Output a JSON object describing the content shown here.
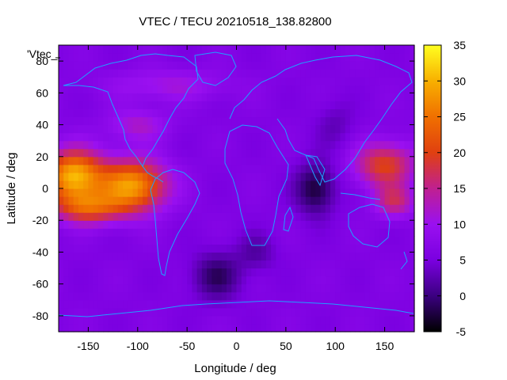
{
  "chart_data": {
    "type": "heatmap",
    "title": "VTEC / TECU 20210518_138.82800",
    "xlabel": "Longitude / deg",
    "ylabel": "Latitude / deg",
    "xlim": [
      -180,
      180
    ],
    "ylim": [
      -90,
      90
    ],
    "x_ticks": [
      -150,
      -100,
      -50,
      0,
      50,
      100,
      150
    ],
    "y_ticks": [
      -80,
      -60,
      -40,
      -20,
      0,
      20,
      40,
      60,
      80
    ],
    "colorbar": {
      "range": [
        -5,
        35
      ],
      "ticks": [
        -5,
        0,
        5,
        10,
        15,
        20,
        25,
        30,
        35
      ],
      "colormap": [
        "#000000",
        "#3b0080",
        "#7a00e0",
        "#9a10f0",
        "#c02090",
        "#e04010",
        "#f07000",
        "#f8b000",
        "#ffff20"
      ]
    },
    "legend": "'Vtec_",
    "features": [
      {
        "name": "Pacific equatorial maximum",
        "lon": -165,
        "lat": 8,
        "value": 32
      },
      {
        "name": "South America maximum",
        "lon": -100,
        "lat": 0,
        "value": 30
      },
      {
        "name": "West Pacific / Asia band",
        "lon": 145,
        "lat": 15,
        "value": 20
      },
      {
        "name": "Indian Ocean minimum",
        "lon": 80,
        "lat": 0,
        "value": -2
      },
      {
        "name": "South Atlantic minimum",
        "lon": -20,
        "lat": -60,
        "value": 0
      }
    ],
    "grid": false
  }
}
